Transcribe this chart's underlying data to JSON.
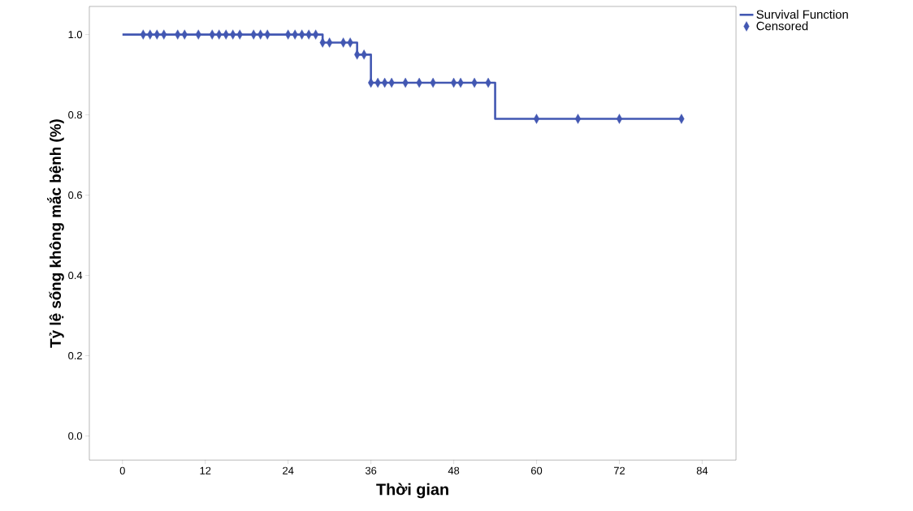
{
  "chart_data": {
    "type": "step",
    "xlabel": "Thời gian",
    "ylabel": "Tỷ lệ sống không mắc bệnh (%)",
    "xlim": [
      -4.8,
      88.9
    ],
    "ylim": [
      -0.06,
      1.07
    ],
    "xticks": [
      0,
      12,
      24,
      36,
      48,
      60,
      72,
      84
    ],
    "yticks": [
      {
        "value": 0,
        "label": "0.0"
      },
      0.2,
      0.4,
      0.6,
      0.8,
      {
        "value": 1,
        "label": "1.0"
      }
    ],
    "legend": "top right",
    "grid": false,
    "series": [
      {
        "name": "Survival Function",
        "color": "#4257b2",
        "x": [
          0,
          29,
          34,
          36,
          54,
          81
        ],
        "values": [
          1,
          0.98,
          0.95,
          0.88,
          0.79,
          0.79
        ]
      },
      {
        "name": "Censored",
        "type": "scatter",
        "marker": "diamond",
        "color": "#4257b2",
        "x": [
          3,
          4,
          5,
          6,
          8,
          9,
          11,
          13,
          14,
          15,
          16,
          17,
          19,
          20,
          21,
          24,
          25,
          26,
          27,
          28,
          29,
          30,
          32,
          33,
          34,
          35,
          36,
          37,
          38,
          39,
          41,
          43,
          45,
          48,
          49,
          51,
          53,
          60,
          66,
          72,
          81
        ],
        "values": [
          1,
          1,
          1,
          1,
          1,
          1,
          1,
          1,
          1,
          1,
          1,
          1,
          1,
          1,
          1,
          1,
          1,
          1,
          1,
          1,
          0.98,
          0.98,
          0.98,
          0.98,
          0.95,
          0.95,
          0.88,
          0.88,
          0.88,
          0.88,
          0.88,
          0.88,
          0.88,
          0.88,
          0.88,
          0.88,
          0.88,
          0.79,
          0.79,
          0.79,
          0.79
        ]
      }
    ]
  }
}
